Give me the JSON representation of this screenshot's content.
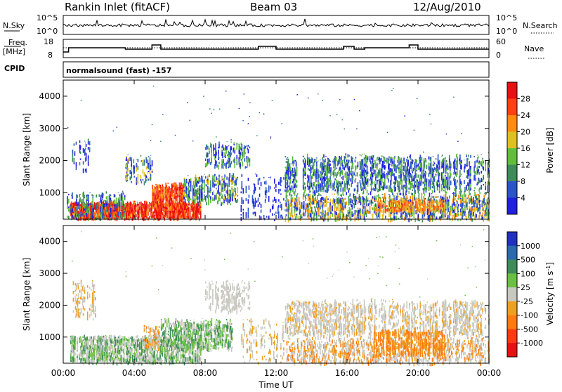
{
  "header": {
    "site": "Rankin Inlet (fitACF)",
    "beam": "Beam 03",
    "date": "12/Aug/2010"
  },
  "control_panels": {
    "nsky_label": "N.Sky",
    "nsearch_label": "N.Search",
    "nsky_ticks": [
      "10^5",
      "10^0"
    ],
    "nsearch_ticks": [
      "10^5",
      "10^0"
    ],
    "freq_label_1": "Freq.",
    "freq_label_2": "[MHz]",
    "freq_ticks": [
      "18",
      "8"
    ],
    "nave_label": "Nave",
    "nave_ticks": [
      "60",
      "0"
    ],
    "cpid_label": "CPID",
    "cpid_text": "normalsound (fast) -157"
  },
  "chart_data": [
    {
      "type": "heatmap",
      "name": "power",
      "ylabel": "Slant Range [km]",
      "yticks": [
        "1000",
        "2000",
        "3000",
        "4000"
      ],
      "ylim": [
        180,
        4500
      ],
      "colorbar_label": "Power [dB]",
      "colorbar_ticks": [
        "4",
        "8",
        "12",
        "16",
        "20",
        "24",
        "28"
      ],
      "colors": [
        "#1f1fe0",
        "#2a55c8",
        "#3d8c5a",
        "#5fbf3a",
        "#e0c020",
        "#ff8a10",
        "#ff4010",
        "#e81010"
      ]
    },
    {
      "type": "heatmap",
      "name": "velocity",
      "ylabel": "Slant Range [km]",
      "yticks": [
        "1000",
        "2000",
        "3000",
        "4000"
      ],
      "ylim": [
        180,
        4500
      ],
      "colorbar_label": "Velocity [m s^-1]",
      "colorbar_ticks": [
        "1000",
        "500",
        "100",
        "25",
        "-25",
        "-100",
        "-500",
        "-1000"
      ],
      "colors": [
        "#2030c0",
        "#2a6ab0",
        "#3d8c5a",
        "#6cc040",
        "#c8c8c0",
        "#f0a020",
        "#ff7a10",
        "#ff3a10",
        "#e81010"
      ]
    }
  ],
  "xaxis": {
    "label": "Time UT",
    "ticks": [
      "00:00",
      "04:00",
      "08:00",
      "12:00",
      "16:00",
      "20:00",
      "00:00"
    ]
  }
}
